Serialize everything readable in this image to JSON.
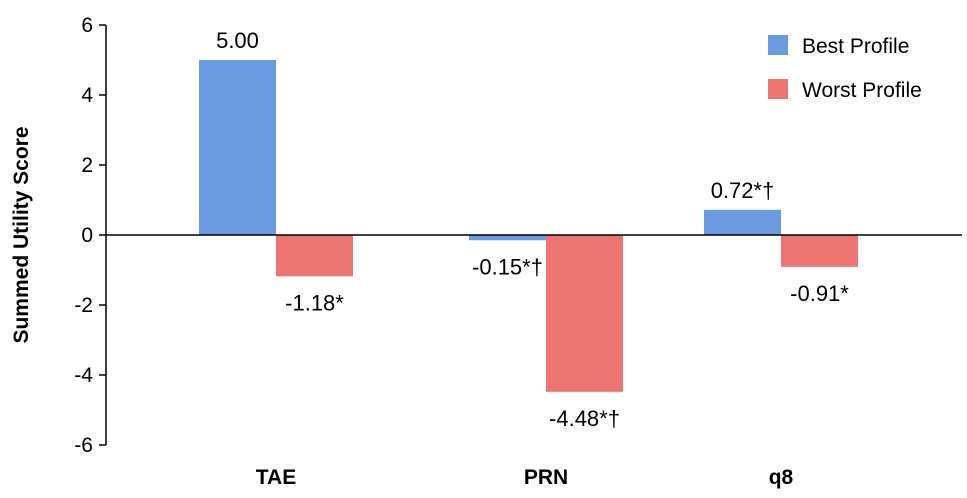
{
  "chart_data": {
    "type": "bar",
    "title": "",
    "xlabel": "",
    "ylabel": "Summed Utility Score",
    "ylim": [
      -6,
      6
    ],
    "yticks": [
      6,
      4,
      2,
      0,
      -2,
      -4,
      -6
    ],
    "categories": [
      "TAE",
      "PRN",
      "q8"
    ],
    "series": [
      {
        "name": "Best Profile",
        "color": "#6a9be1",
        "values": [
          5.0,
          -0.15,
          0.72
        ],
        "labels": [
          "5.00",
          "-0.15*†",
          "0.72*†"
        ]
      },
      {
        "name": "Worst Profile",
        "color": "#ec7472",
        "values": [
          -1.18,
          -4.48,
          -0.91
        ],
        "labels": [
          "-1.18*",
          "-4.48*†",
          "-0.91*"
        ]
      }
    ],
    "grid": false,
    "legend_position": "top-right"
  }
}
